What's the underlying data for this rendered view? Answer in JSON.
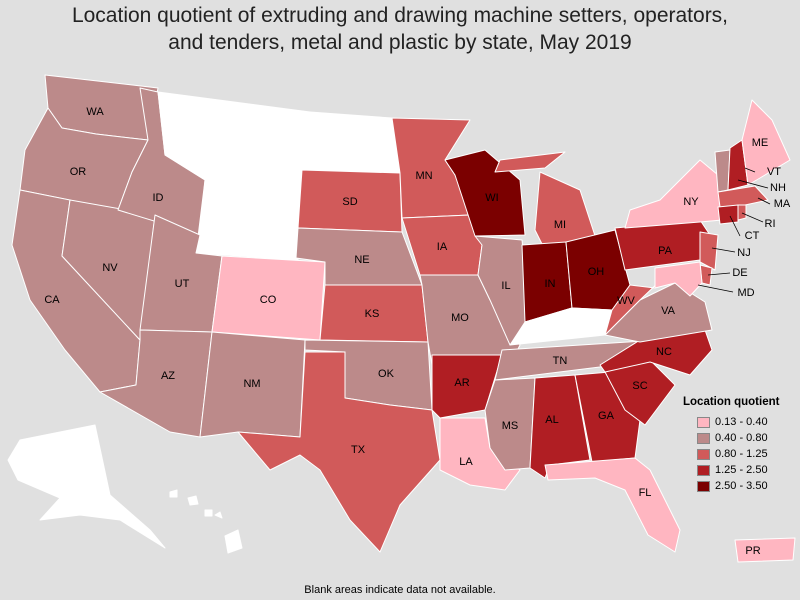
{
  "title_lines": [
    "Location quotient of extruding and drawing machine setters, operators,",
    "and tenders, metal and plastic by state, May 2019"
  ],
  "legend": {
    "title": "Location quotient",
    "items": [
      {
        "label": "0.13 - 0.40",
        "color": "#ffb6c1"
      },
      {
        "label": "0.40 - 0.80",
        "color": "#bc8a8a"
      },
      {
        "label": "0.80 - 1.25",
        "color": "#d15a5a"
      },
      {
        "label": "1.25 - 2.50",
        "color": "#b01e23"
      },
      {
        "label": "2.50 - 3.50",
        "color": "#7b0000"
      }
    ]
  },
  "no_data_color": "#ffffff",
  "footnote": "Blank areas indicate data not available.",
  "states": {
    "WA": 1,
    "OR": 1,
    "CA": 1,
    "NV": 1,
    "ID": 1,
    "UT": 1,
    "AZ": 1,
    "NM": 1,
    "MT": null,
    "WY": null,
    "ND": null,
    "CO": 0,
    "AK": null,
    "HI": null,
    "SD": 2,
    "NE": 1,
    "KS": 2,
    "OK": 1,
    "TX": 2,
    "MN": 2,
    "IA": 2,
    "MO": 1,
    "AR": 3,
    "LA": 0,
    "WI": 4,
    "IL": 1,
    "MI": 2,
    "IN": 4,
    "OH": 4,
    "KY": null,
    "TN": 1,
    "MS": 1,
    "AL": 3,
    "GA": 3,
    "FL": 0,
    "SC": 3,
    "NC": 3,
    "VA": 1,
    "WV": 2,
    "PA": 3,
    "NY": 0,
    "VT": 1,
    "NH": 3,
    "ME": 0,
    "MA": 2,
    "CT": 3,
    "RI": 2,
    "NJ": 2,
    "DE": 2,
    "MD": 0,
    "PR": 0
  }
}
